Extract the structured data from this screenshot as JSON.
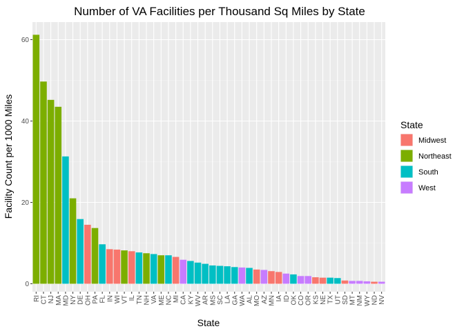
{
  "chart_data": {
    "type": "bar",
    "title": "Number of VA Facilities per Thousand Sq Miles by State",
    "xlabel": "State",
    "ylabel": "Facility Count per 1000 Miles",
    "ylim": [
      0,
      64
    ],
    "yticks": [
      0,
      20,
      40,
      60
    ],
    "grid": true,
    "legend": {
      "title": "State",
      "placement": "right",
      "entries": [
        {
          "name": "Midwest",
          "color": "#F8766D"
        },
        {
          "name": "Northeast",
          "color": "#7CAE00"
        },
        {
          "name": "South",
          "color": "#00BFC4"
        },
        {
          "name": "West",
          "color": "#C77CFF"
        }
      ]
    },
    "categories": [
      "RI",
      "CT",
      "NJ",
      "MA",
      "MD",
      "NY",
      "DE",
      "OH",
      "PA",
      "FL",
      "IN",
      "WI",
      "VT",
      "IL",
      "TN",
      "NH",
      "VA",
      "ME",
      "NC",
      "MI",
      "CA",
      "KY",
      "WV",
      "AR",
      "MS",
      "SC",
      "LA",
      "GA",
      "WA",
      "AL",
      "MO",
      "AZ",
      "MN",
      "IA",
      "ID",
      "OK",
      "CO",
      "OR",
      "KS",
      "NE",
      "TX",
      "UT",
      "SD",
      "MT",
      "NM",
      "WY",
      "ND",
      "NV"
    ],
    "values": [
      61.2,
      49.7,
      45.2,
      43.5,
      31.3,
      21.0,
      15.9,
      14.5,
      13.7,
      9.7,
      8.5,
      8.4,
      8.2,
      8.0,
      7.7,
      7.5,
      7.3,
      7.0,
      7.0,
      6.6,
      5.9,
      5.6,
      5.2,
      4.9,
      4.5,
      4.4,
      4.3,
      4.1,
      4.0,
      3.9,
      3.5,
      3.4,
      3.1,
      2.9,
      2.5,
      2.3,
      1.9,
      1.9,
      1.6,
      1.5,
      1.5,
      1.4,
      0.8,
      0.7,
      0.7,
      0.6,
      0.5,
      0.5
    ],
    "regions": [
      "Northeast",
      "Northeast",
      "Northeast",
      "Northeast",
      "South",
      "Northeast",
      "South",
      "Midwest",
      "Northeast",
      "South",
      "Midwest",
      "Midwest",
      "Northeast",
      "Midwest",
      "South",
      "Northeast",
      "South",
      "Northeast",
      "South",
      "Midwest",
      "West",
      "South",
      "South",
      "South",
      "South",
      "South",
      "South",
      "South",
      "West",
      "South",
      "Midwest",
      "West",
      "Midwest",
      "Midwest",
      "West",
      "South",
      "West",
      "West",
      "Midwest",
      "Midwest",
      "South",
      "South",
      "Midwest",
      "West",
      "West",
      "West",
      "Midwest",
      "West"
    ]
  }
}
